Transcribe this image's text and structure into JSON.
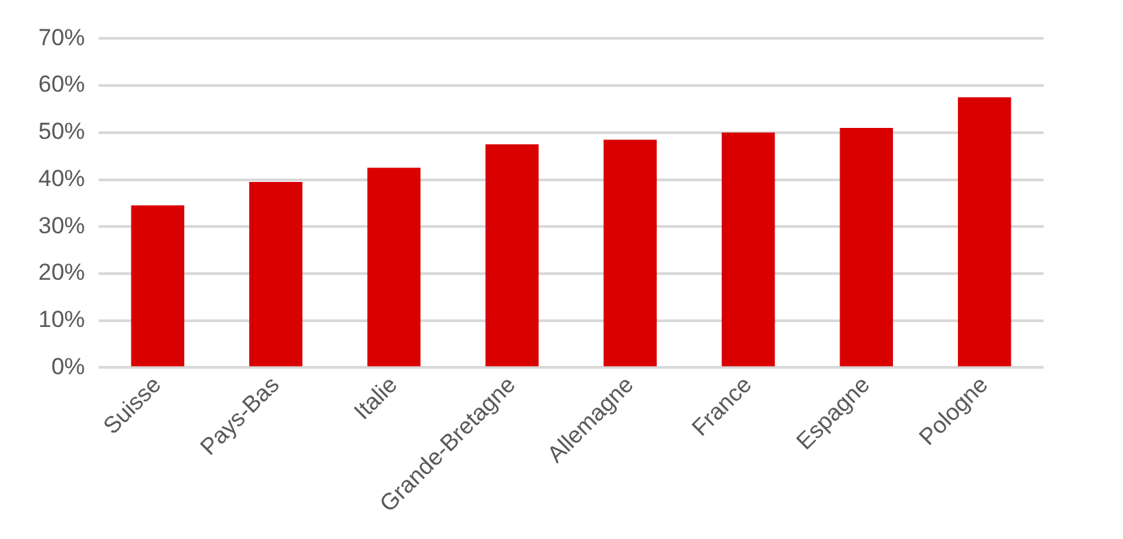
{
  "chart_data": {
    "type": "bar",
    "categories": [
      "Suisse",
      "Pays-Bas",
      "Italie",
      "Grande-Bretagne",
      "Allemagne",
      "France",
      "Espagne",
      "Pologne"
    ],
    "values": [
      34.5,
      39.5,
      42.5,
      47.5,
      48.5,
      50,
      51,
      57.5
    ],
    "color": "#d90000",
    "ylim": [
      0,
      70
    ],
    "yticks": [
      {
        "value": 0,
        "label": "0%"
      },
      {
        "value": 10,
        "label": "10%"
      },
      {
        "value": 20,
        "label": "20%"
      },
      {
        "value": 30,
        "label": "30%"
      },
      {
        "value": 40,
        "label": "40%"
      },
      {
        "value": 50,
        "label": "50%"
      },
      {
        "value": 60,
        "label": "60%"
      },
      {
        "value": 70,
        "label": "70%"
      }
    ],
    "grid": "y",
    "legend": false
  }
}
